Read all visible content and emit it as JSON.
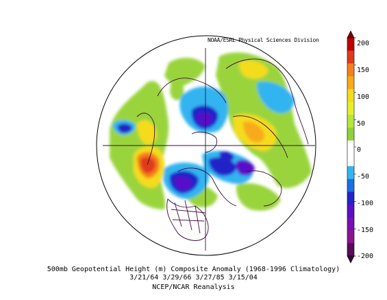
{
  "credit": "NOAA/ESRL Physical Sciences Division",
  "caption": {
    "line1": "500mb Geopotential Height (m) Composite Anomaly (1968-1996 Climatology)",
    "line2": "3/21/64 3/29/66 3/27/85 3/15/04",
    "line3": "NCEP/NCAR Reanalysis"
  },
  "colorbar": {
    "ticks": [
      "200",
      "150",
      "100",
      "50",
      "0",
      "-50",
      "-100",
      "-150",
      "-200"
    ],
    "colors": [
      "#c00000",
      "#e03a1a",
      "#f57f1a",
      "#f9a91a",
      "#f4dc1a",
      "#e6f02a",
      "#b4e63c",
      "#8fd23c",
      "#ffffff",
      "#ffffff",
      "#33b4f0",
      "#1b6ee6",
      "#2323c8",
      "#5a0fc8",
      "#780fb4",
      "#8c148c",
      "#5a0a5a"
    ]
  }
}
